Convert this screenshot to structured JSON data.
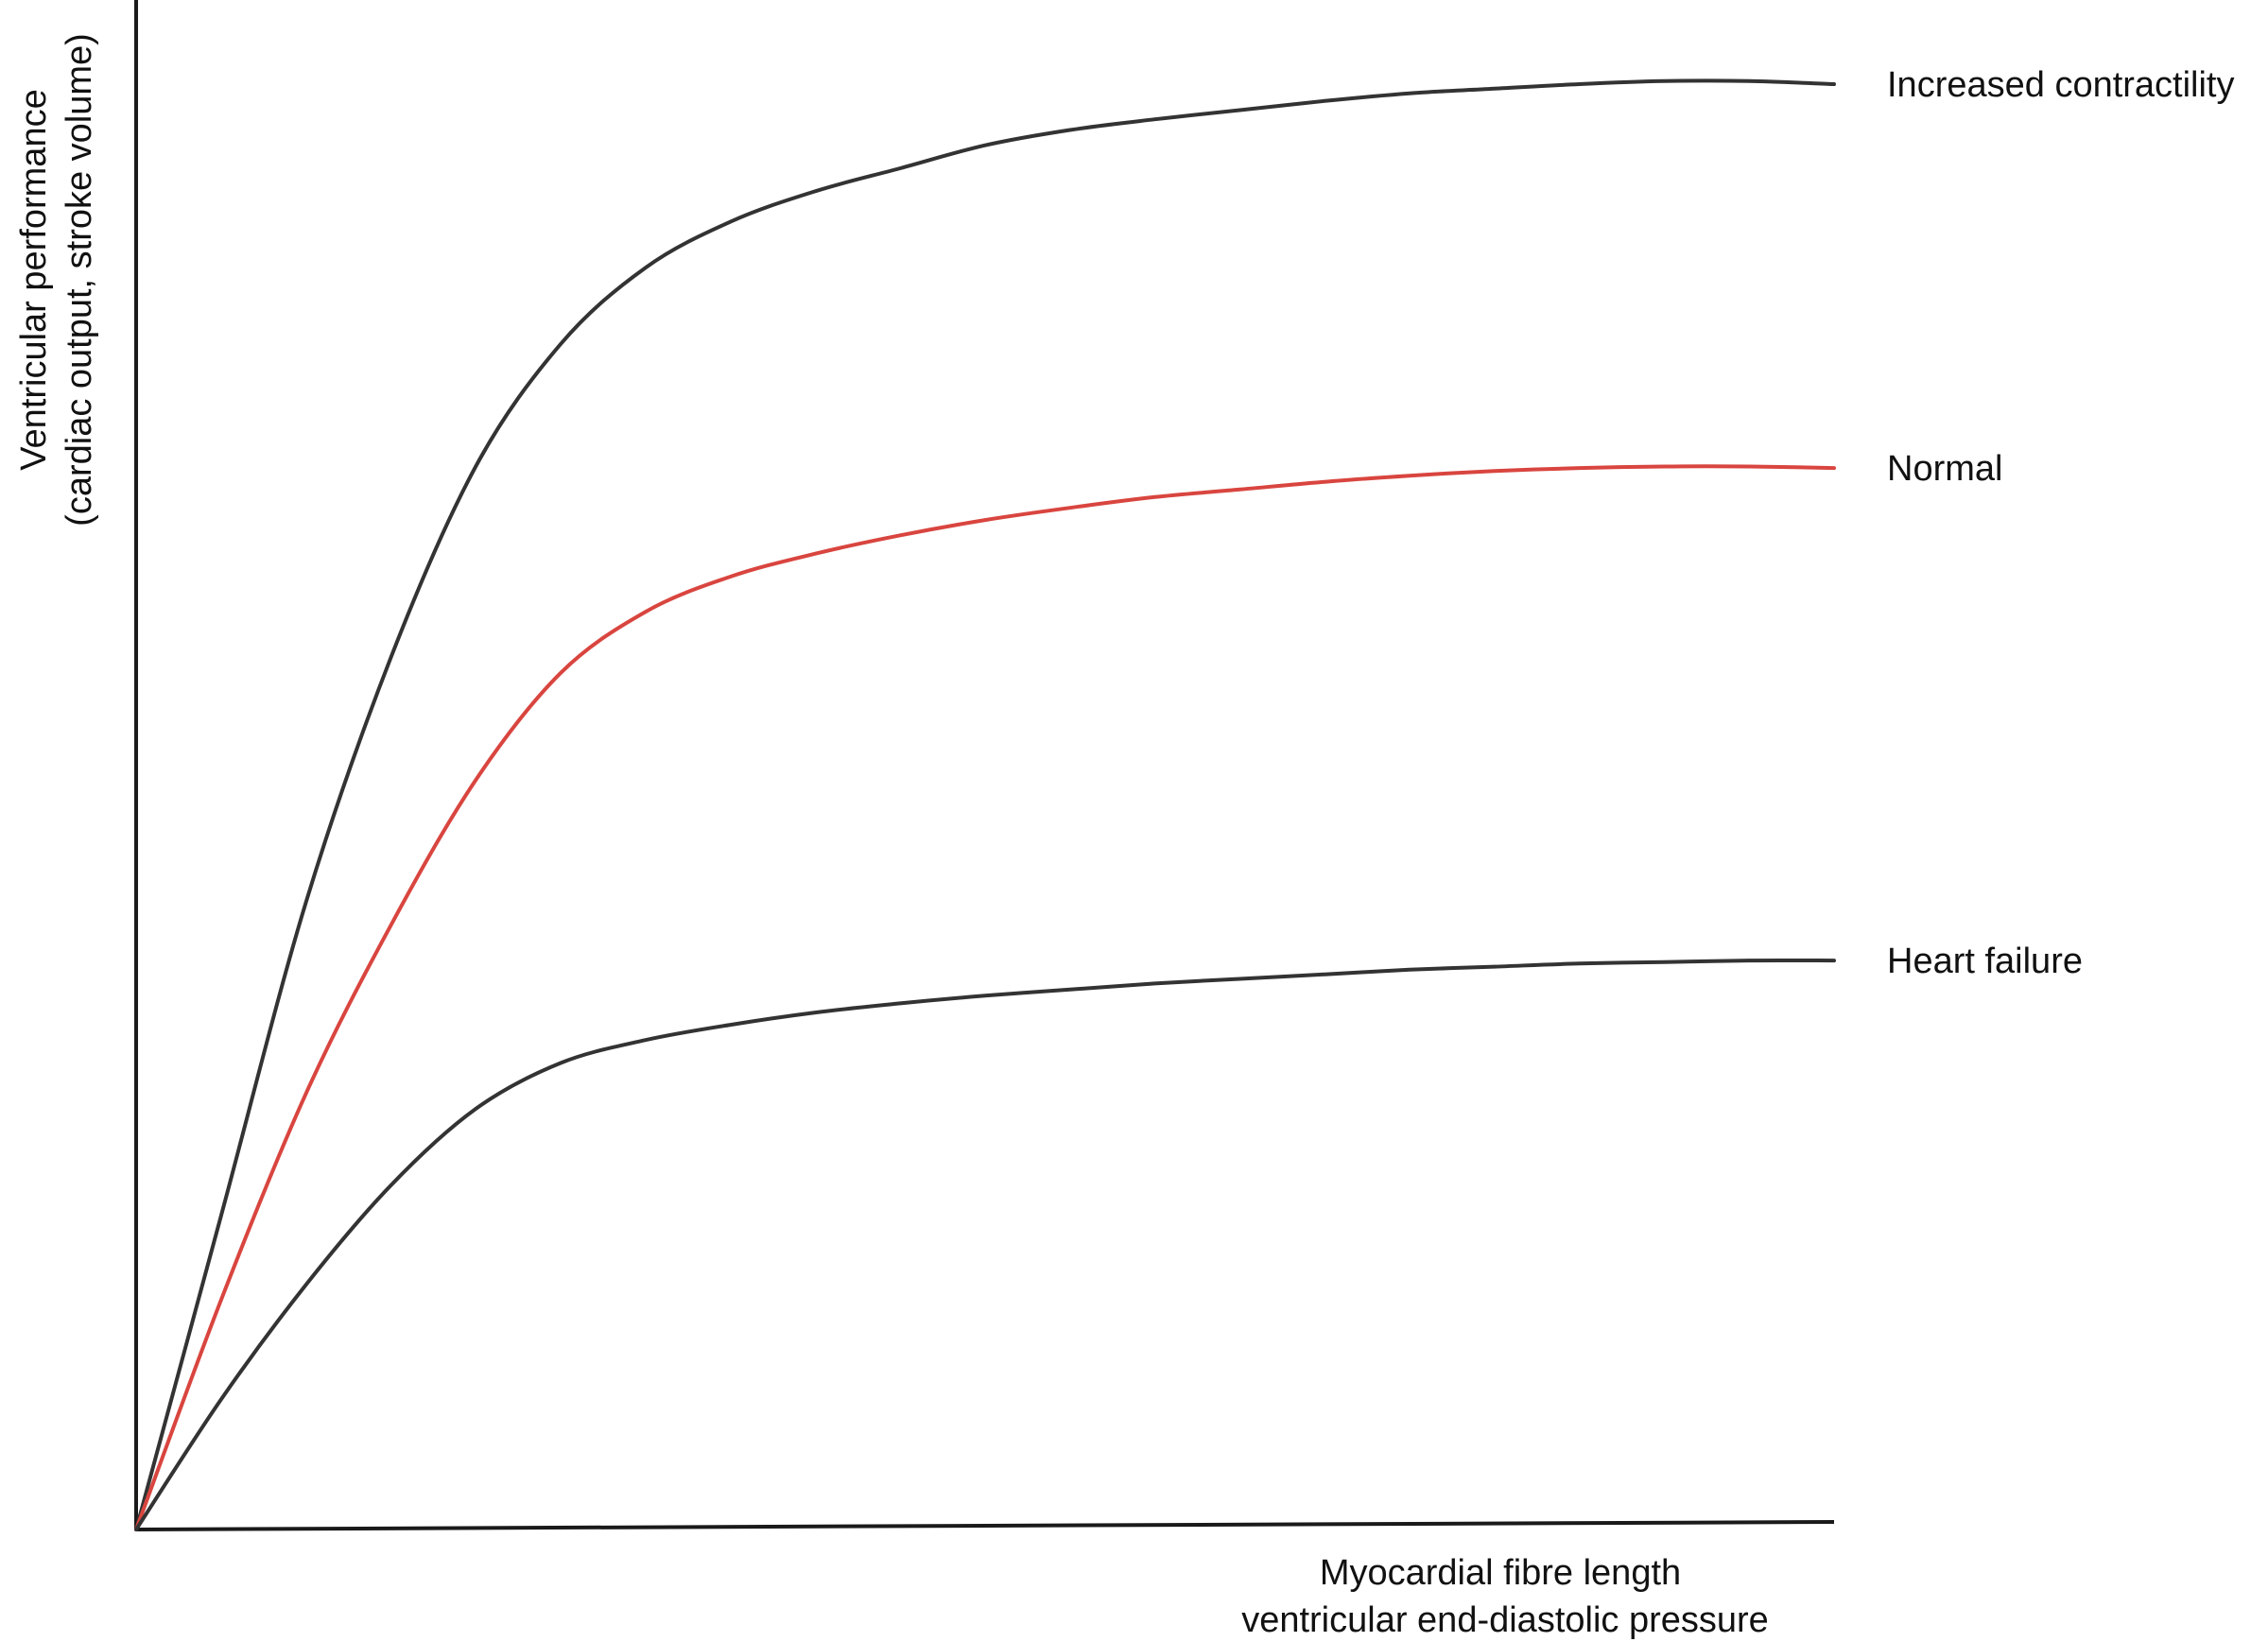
{
  "chart_data": {
    "type": "line",
    "title": "",
    "xlabel": [
      "Myocardial fibre length",
      "ventricular end-diastolic pressure"
    ],
    "ylabel": [
      "Ventricular performance",
      "(cardiac output, stroke volume)"
    ],
    "xlim": [
      0,
      100
    ],
    "ylim": [
      0,
      100
    ],
    "grid": false,
    "ticks": false,
    "legend": "labels at right end of each curve",
    "series": [
      {
        "name": "Increased contractility",
        "color": "#333333",
        "x": [
          0,
          5,
          10,
          15,
          20,
          25,
          30,
          35,
          40,
          45,
          50,
          55,
          60,
          65,
          70,
          75,
          80,
          85,
          90,
          95,
          100
        ],
        "y": [
          0,
          20.5,
          41,
          57,
          69.5,
          77.5,
          82.5,
          85.5,
          87.5,
          89,
          90.5,
          91.5,
          92.2,
          92.8,
          93.4,
          93.9,
          94.2,
          94.5,
          94.7,
          94.7,
          94.5
        ]
      },
      {
        "name": "Normal",
        "color": "#d9453f",
        "x": [
          0,
          5,
          10,
          15,
          20,
          25,
          30,
          35,
          40,
          45,
          50,
          55,
          60,
          65,
          70,
          75,
          80,
          85,
          90,
          95,
          100
        ],
        "y": [
          0,
          15,
          28.5,
          39.5,
          49,
          56,
          60,
          62.3,
          63.8,
          65,
          66,
          66.8,
          67.5,
          68,
          68.5,
          68.9,
          69.2,
          69.4,
          69.5,
          69.5,
          69.4
        ]
      },
      {
        "name": "Heart failure",
        "color": "#333333",
        "x": [
          0,
          5,
          10,
          15,
          20,
          25,
          30,
          35,
          40,
          45,
          50,
          55,
          60,
          65,
          70,
          75,
          80,
          85,
          90,
          95,
          100
        ],
        "y": [
          0,
          8.5,
          16,
          22.5,
          27.5,
          30.5,
          32,
          33,
          33.8,
          34.4,
          34.9,
          35.3,
          35.7,
          36,
          36.3,
          36.6,
          36.8,
          37,
          37.1,
          37.2,
          37.2
        ]
      }
    ]
  }
}
